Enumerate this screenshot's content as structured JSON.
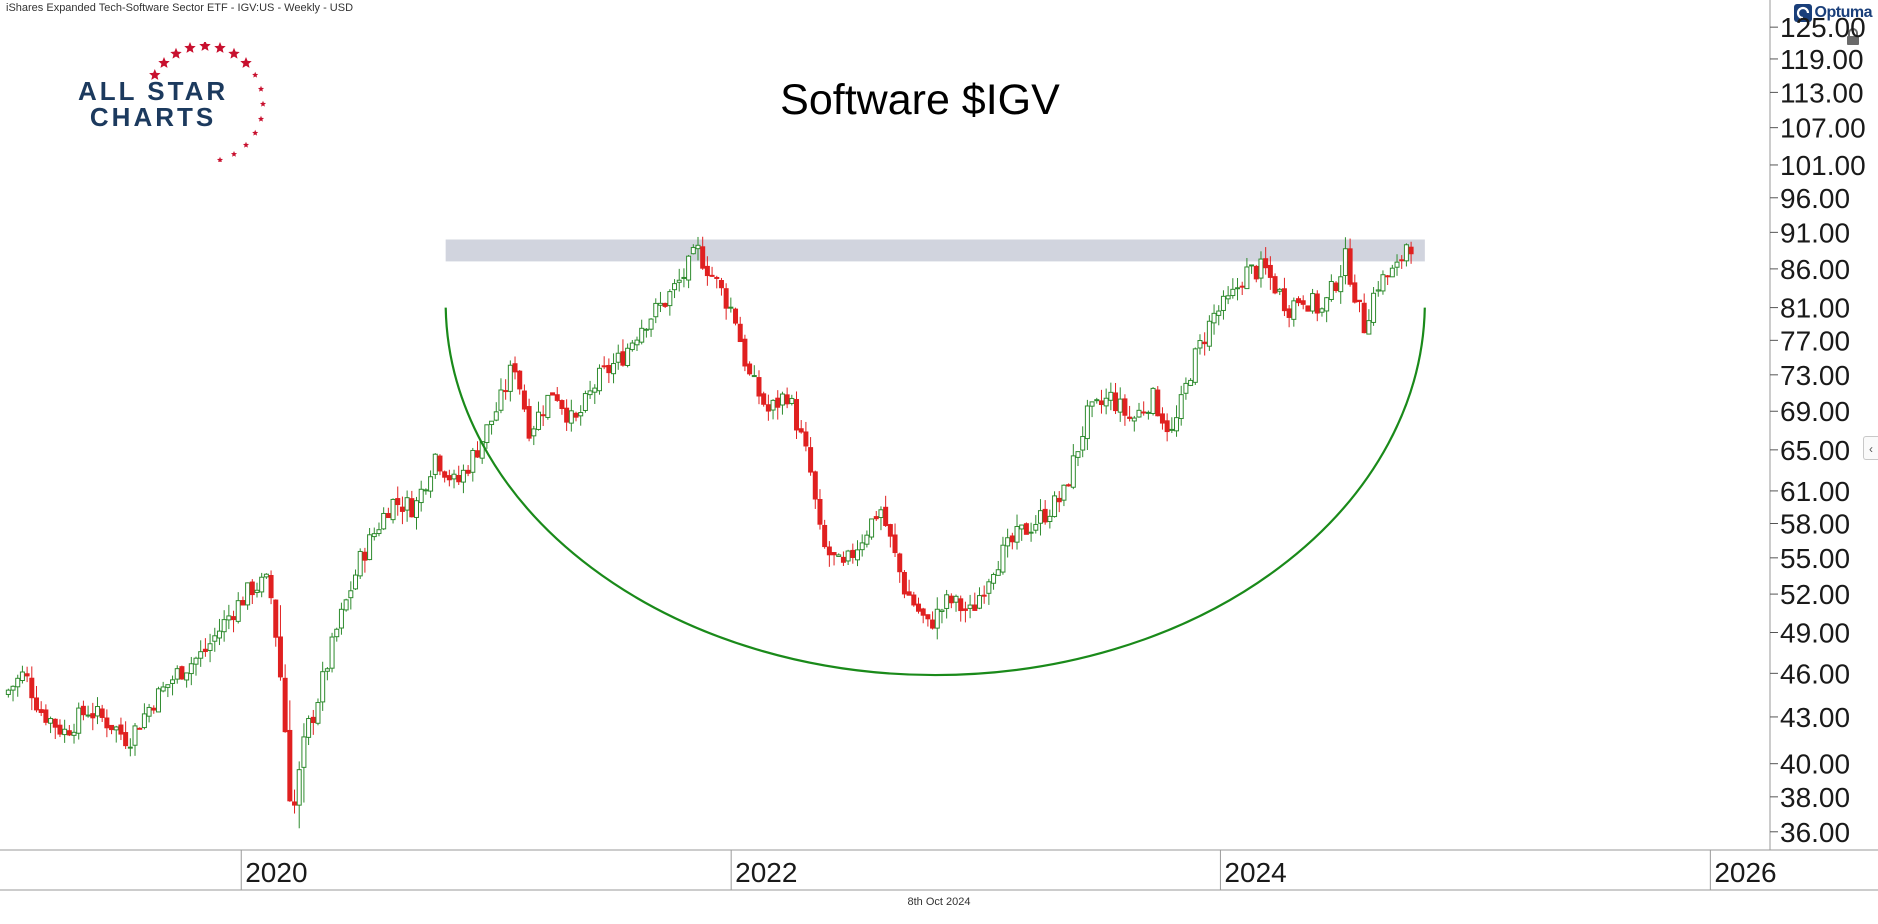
{
  "header": {
    "instrument": "iShares Expanded Tech-Software Sector ETF - IGV:US - Weekly - USD",
    "brand": "Optuma",
    "date": "8th Oct 2024"
  },
  "logo": {
    "line1": "ALL STAR",
    "line2": "CHARTS"
  },
  "icons": {
    "lock": "lock-icon",
    "collapse": "chevron-left-icon",
    "brand": "optuma-logo-icon"
  },
  "colors": {
    "up": "#2e8b2e",
    "down": "#e02020",
    "arc": "#1a8a1a",
    "zone": "#c9ccd8",
    "accent": "#c8102e",
    "logo_navy": "#1c3a5e"
  },
  "chart_data": {
    "type": "candlestick",
    "title": "Software $IGV",
    "y_scale": "log",
    "ylim": [
      35,
      126
    ],
    "yticks": [
      "125.00",
      "119.00",
      "113.00",
      "107.00",
      "101.00",
      "96.00",
      "91.00",
      "86.00",
      "81.00",
      "77.00",
      "73.00",
      "69.00",
      "65.00",
      "61.00",
      "58.00",
      "55.00",
      "52.00",
      "49.00",
      "46.00",
      "43.00",
      "40.00",
      "38.00",
      "36.00"
    ],
    "xlim": [
      "2019-01-15",
      "2026-03-31"
    ],
    "xticks": [
      "2020",
      "2022",
      "2024",
      "2026"
    ],
    "resistance_zone": {
      "x_start": "2020-11-01",
      "x_end": "2024-11-01",
      "y_low": 87,
      "y_high": 90
    },
    "rounding_bottom_arc": {
      "x_start": "2020-11-01",
      "x_end": "2024-11-01",
      "edge_y": 81,
      "bottom_x": "2022-11-01",
      "bottom_y": 45.5
    },
    "price_path": [
      [
        "2019-01-15",
        44.5
      ],
      [
        "2019-02-15",
        46.0
      ],
      [
        "2019-03-10",
        43.5
      ],
      [
        "2019-04-15",
        42.0
      ],
      [
        "2019-05-20",
        43.5
      ],
      [
        "2019-06-25",
        42.5
      ],
      [
        "2019-07-20",
        41.5
      ],
      [
        "2019-08-25",
        44.0
      ],
      [
        "2019-10-01",
        46.0
      ],
      [
        "2019-11-10",
        47.5
      ],
      [
        "2019-12-20",
        50.5
      ],
      [
        "2020-01-20",
        52.5
      ],
      [
        "2020-02-15",
        53.0
      ],
      [
        "2020-03-01",
        47.0
      ],
      [
        "2020-03-22",
        37.0
      ],
      [
        "2020-04-20",
        43.0
      ],
      [
        "2020-05-25",
        49.0
      ],
      [
        "2020-07-01",
        55.0
      ],
      [
        "2020-08-15",
        60.0
      ],
      [
        "2020-09-20",
        59.5
      ],
      [
        "2020-10-20",
        64.5
      ],
      [
        "2020-11-20",
        61.5
      ],
      [
        "2020-12-25",
        65.5
      ],
      [
        "2021-01-25",
        70.0
      ],
      [
        "2021-02-15",
        74.5
      ],
      [
        "2021-03-10",
        67.0
      ],
      [
        "2021-04-15",
        71.5
      ],
      [
        "2021-05-15",
        67.5
      ],
      [
        "2021-06-20",
        72.5
      ],
      [
        "2021-07-25",
        75.0
      ],
      [
        "2021-08-25",
        79.0
      ],
      [
        "2021-09-25",
        81.5
      ],
      [
        "2021-10-25",
        85.0
      ],
      [
        "2021-11-15",
        88.5
      ],
      [
        "2021-12-15",
        84.0
      ],
      [
        "2022-01-10",
        80.0
      ],
      [
        "2022-01-30",
        73.0
      ],
      [
        "2022-03-01",
        69.0
      ],
      [
        "2022-03-30",
        71.0
      ],
      [
        "2022-05-01",
        63.5
      ],
      [
        "2022-05-20",
        56.0
      ],
      [
        "2022-06-20",
        54.0
      ],
      [
        "2022-08-15",
        59.5
      ],
      [
        "2022-09-20",
        52.5
      ],
      [
        "2022-10-25",
        49.5
      ],
      [
        "2022-11-25",
        51.5
      ],
      [
        "2022-12-28",
        50.5
      ],
      [
        "2023-02-01",
        54.5
      ],
      [
        "2023-03-10",
        57.0
      ],
      [
        "2023-04-10",
        58.5
      ],
      [
        "2023-05-15",
        60.5
      ],
      [
        "2023-06-20",
        68.5
      ],
      [
        "2023-07-25",
        70.5
      ],
      [
        "2023-08-25",
        68.0
      ],
      [
        "2023-09-25",
        70.5
      ],
      [
        "2023-10-25",
        66.5
      ],
      [
        "2023-11-25",
        74.5
      ],
      [
        "2023-12-25",
        80.0
      ],
      [
        "2024-01-20",
        82.0
      ],
      [
        "2024-02-10",
        85.5
      ],
      [
        "2024-03-10",
        86.0
      ],
      [
        "2024-04-15",
        81.0
      ],
      [
        "2024-05-05",
        82.5
      ],
      [
        "2024-06-05",
        80.5
      ],
      [
        "2024-07-10",
        87.5
      ],
      [
        "2024-08-05",
        78.5
      ],
      [
        "2024-08-25",
        84.0
      ],
      [
        "2024-09-25",
        86.0
      ],
      [
        "2024-10-08",
        89.5
      ]
    ]
  }
}
